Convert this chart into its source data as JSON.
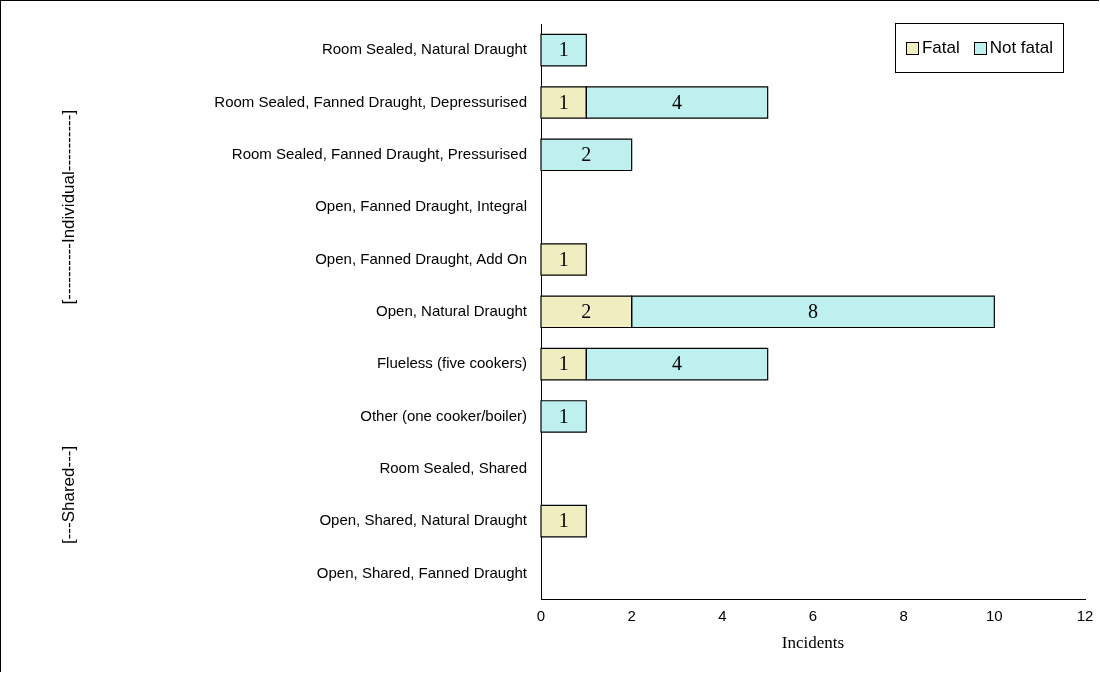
{
  "chart_data": {
    "type": "bar",
    "orientation": "horizontal",
    "stacked": true,
    "xlabel": "Incidents",
    "categories": [
      "Room Sealed, Natural Draught",
      "Room Sealed, Fanned Draught, Depressurised",
      "Room Sealed, Fanned Draught, Pressurised",
      "Open, Fanned Draught, Integral",
      "Open, Fanned Draught, Add On",
      "Open, Natural Draught",
      "Flueless (five cookers)",
      "Other (one cooker/boiler)",
      "Room Sealed, Shared",
      "Open, Shared, Natural Draught",
      "Open, Shared, Fanned Draught"
    ],
    "series": [
      {
        "name": "Fatal",
        "color": "#f0eec0",
        "values": [
          null,
          1,
          null,
          null,
          1,
          2,
          1,
          null,
          null,
          1,
          null
        ]
      },
      {
        "name": "Not fatal",
        "color": "#bff0f0",
        "values": [
          1,
          4,
          2,
          null,
          null,
          8,
          4,
          1,
          null,
          null,
          null
        ]
      }
    ],
    "xlim": [
      0,
      12
    ],
    "xticks": [
      0,
      2,
      4,
      6,
      8,
      10,
      12
    ],
    "grid": false,
    "legend": "top right",
    "data_labels": true,
    "annotations": [
      "[----------Individual----------]",
      "[---Shared---]"
    ]
  }
}
